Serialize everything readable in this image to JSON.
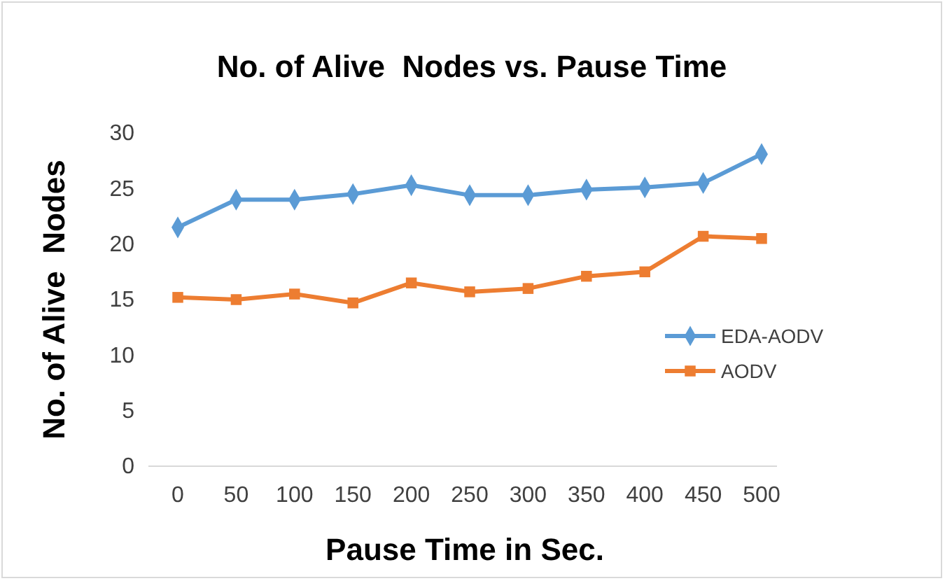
{
  "chart_data": {
    "type": "line",
    "title": "No. of Alive  Nodes vs. Pause Time",
    "xlabel": "Pause Time in Sec.",
    "ylabel": "No. of Alive  Nodes",
    "categories": [
      "0",
      "50",
      "100",
      "150",
      "200",
      "250",
      "300",
      "350",
      "400",
      "450",
      "500"
    ],
    "series": [
      {
        "name": "EDA-AODV",
        "color": "#5b9bd5",
        "marker": "diamond",
        "values": [
          21.5,
          24.0,
          24.0,
          24.5,
          25.3,
          24.4,
          24.4,
          24.9,
          25.1,
          25.5,
          28.1
        ]
      },
      {
        "name": "AODV",
        "color": "#ed7d31",
        "marker": "square",
        "values": [
          15.2,
          15.0,
          15.5,
          14.7,
          16.5,
          15.7,
          16.0,
          17.1,
          17.5,
          20.7,
          20.5
        ]
      }
    ],
    "ylim": [
      0,
      30
    ],
    "yticks": [
      0,
      5,
      10,
      15,
      20,
      25,
      30
    ],
    "legend": "right"
  }
}
